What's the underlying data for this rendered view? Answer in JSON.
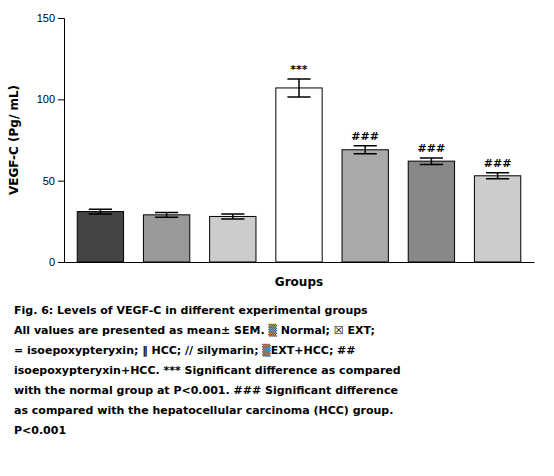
{
  "chart_data": {
    "type": "bar",
    "xlabel": "Groups",
    "ylabel": "VEGF-C (Pg/ mL)",
    "categories": [
      null,
      null,
      null,
      null,
      null,
      null,
      null
    ],
    "values": [
      31,
      29,
      28,
      107,
      69,
      62,
      53
    ],
    "errors": [
      1.5,
      1.5,
      1.5,
      5.5,
      2.5,
      2.0,
      1.8
    ],
    "colors": [
      "#444444",
      "#999999",
      "#cccccc",
      "#ffffff",
      "#aaaaaa",
      "#888888",
      "#cccccc"
    ],
    "ylim": [
      0,
      150
    ],
    "yticks": [
      0,
      50,
      100,
      150
    ],
    "grid": false,
    "tick_labels": "y",
    "annotations": [
      null,
      null,
      null,
      "***",
      "###",
      "###",
      "###"
    ],
    "caption": "Fig. 6: Levels of VEGF-C in different experimental groups\nAll values are presented as mean± SEM. ▒ Normal; ☒ EXT;\n= isoepoxypteryxin; ‖ HCC; // silymarin; ▒EXT+HCC; ##\nisoepoxypteryxin+HCC. *** Significant difference as compared\nwith the normal group at P<0.001. ### Significant difference\nas compared with the hepatocellular carcinoma (HCC) group.\nP<0.001"
  }
}
